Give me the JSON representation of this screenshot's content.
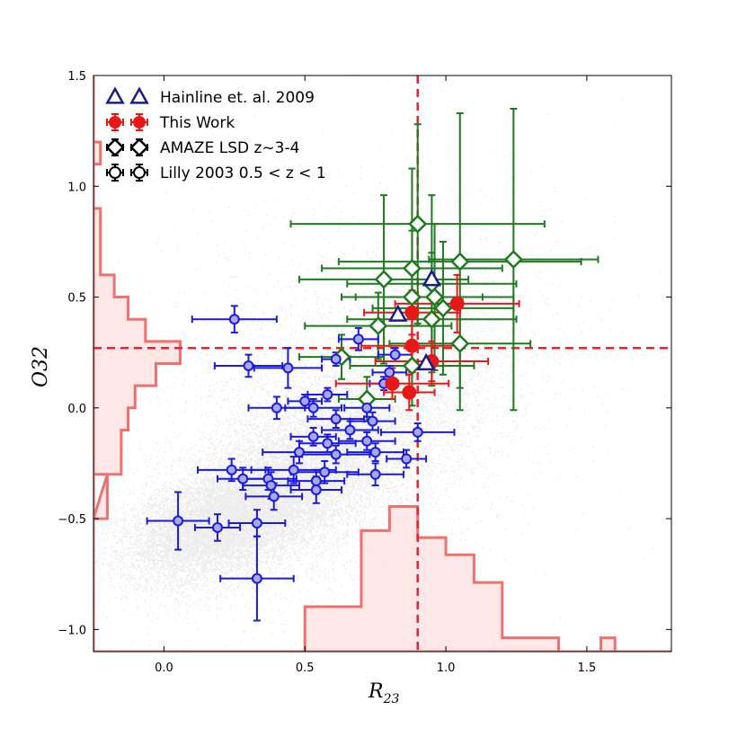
{
  "chart_data": {
    "type": "scatter",
    "xlabel": "R",
    "xlabel_sub": "23",
    "ylabel": "O32",
    "xlim": [
      -0.25,
      1.8
    ],
    "ylim": [
      -1.1,
      1.5
    ],
    "xticks": [
      "0.0",
      "0.5",
      "1.0",
      "1.5"
    ],
    "xtick_values": [
      0.0,
      0.5,
      1.0,
      1.5
    ],
    "yticks": [
      "−1.0",
      "−0.5",
      "0.0",
      "0.5",
      "1.0",
      "1.5"
    ],
    "ytick_values": [
      -1.0,
      -0.5,
      0.0,
      0.5,
      1.0,
      1.5
    ],
    "grid": false,
    "legend_position": "top-left",
    "reference_lines": {
      "x": 0.9,
      "y": 0.27,
      "color": "#e8232a"
    },
    "background_density": {
      "description_free": true,
      "clusters": [
        {
          "cx": 0.2,
          "cy": -0.52,
          "sx": 0.17,
          "sy": 0.13,
          "rho": 0.45,
          "n": 9000
        },
        {
          "cx": 0.5,
          "cy": -0.3,
          "sx": 0.22,
          "sy": 0.22,
          "rho": 0.55,
          "n": 7000
        },
        {
          "cx": 0.7,
          "cy": 0.0,
          "sx": 0.3,
          "sy": 0.35,
          "rho": 0.35,
          "n": 3500
        },
        {
          "cx": 0.6,
          "cy": 0.0,
          "sx": 0.45,
          "sy": 0.55,
          "rho": 0.2,
          "n": 1800
        }
      ],
      "color": "#000000"
    },
    "histogram_x": {
      "color": "#f07070",
      "fill": "#fde3e3",
      "bins": [
        {
          "x0": -0.25,
          "x1": 0.5,
          "value": 0.0
        },
        {
          "x0": 0.5,
          "x1": 0.7,
          "value": 0.13
        },
        {
          "x0": 0.7,
          "x1": 0.8,
          "value": 0.35
        },
        {
          "x0": 0.8,
          "x1": 0.9,
          "value": 0.42
        },
        {
          "x0": 0.9,
          "x1": 1.0,
          "value": 0.33
        },
        {
          "x0": 1.0,
          "x1": 1.1,
          "value": 0.28
        },
        {
          "x0": 1.1,
          "x1": 1.2,
          "value": 0.2
        },
        {
          "x0": 1.2,
          "x1": 1.4,
          "value": 0.04
        },
        {
          "x0": 1.4,
          "x1": 1.55,
          "value": 0.0
        },
        {
          "x0": 1.55,
          "x1": 1.6,
          "value": 0.04
        },
        {
          "x0": 1.6,
          "x1": 1.8,
          "value": 0.0
        }
      ]
    },
    "histogram_y": {
      "color": "#f07070",
      "fill": "#fde3e3",
      "bins": [
        {
          "y0": 1.1,
          "y1": 1.5,
          "value": 0.0
        },
        {
          "y0": 1.2,
          "y1": 1.5,
          "value": 0.0
        },
        {
          "y0": 1.1,
          "y1": 1.2,
          "value": 0.02
        },
        {
          "y0": 0.9,
          "y1": 1.1,
          "value": 0.0
        },
        {
          "y0": 0.6,
          "y1": 0.9,
          "value": 0.02
        },
        {
          "y0": 0.5,
          "y1": 0.6,
          "value": 0.06
        },
        {
          "y0": 0.4,
          "y1": 0.5,
          "value": 0.1
        },
        {
          "y0": 0.3,
          "y1": 0.4,
          "value": 0.15
        },
        {
          "y0": 0.2,
          "y1": 0.3,
          "value": 0.25
        },
        {
          "y0": 0.1,
          "y1": 0.2,
          "value": 0.18
        },
        {
          "y0": 0.0,
          "y1": 0.1,
          "value": 0.12
        },
        {
          "y0": -0.1,
          "y1": 0.0,
          "value": 0.1
        },
        {
          "y0": -0.3,
          "y1": -0.1,
          "value": 0.08
        },
        {
          "y0": -0.5,
          "y1": -0.3,
          "value": 0.0
        },
        {
          "y0": -0.5,
          "y1": -0.3,
          "value": 0.04
        },
        {
          "y0": -1.1,
          "y1": -0.5,
          "value": 0.0
        }
      ]
    },
    "legend": [
      {
        "label": "Hainline et. al. 2009",
        "marker": "triangle",
        "color": "#1b1b8a",
        "fill": "#ffffff"
      },
      {
        "label": "This Work",
        "marker": "circle",
        "color": "#e81818",
        "fill": "#e81818"
      },
      {
        "label": "AMAZE LSD z~3-4",
        "marker": "diamond",
        "color": "#000000",
        "fill": "#ffffff"
      },
      {
        "label": "Lilly 2003 0.5 < z < 1",
        "marker": "circle",
        "color": "#000000",
        "fill": "#ffffff"
      }
    ],
    "series": [
      {
        "name": "Hainline et. al. 2009",
        "marker": "triangle",
        "stroke": "#1b1b8a",
        "fill": "#ffffff",
        "points": [
          {
            "x": 0.83,
            "y": 0.42
          },
          {
            "x": 0.93,
            "y": 0.2
          },
          {
            "x": 0.95,
            "y": 0.58
          }
        ]
      },
      {
        "name": "This Work",
        "marker": "circle",
        "stroke": "#e81818",
        "fill": "#e81818",
        "points": [
          {
            "x": 0.88,
            "y": 0.43,
            "xerr": 0.17,
            "yerr": 0.1
          },
          {
            "x": 1.04,
            "y": 0.47,
            "xerr": 0.22,
            "yerr": 0.13
          },
          {
            "x": 0.88,
            "y": 0.28,
            "xerr": 0.18,
            "yerr": 0.12
          },
          {
            "x": 0.95,
            "y": 0.21,
            "xerr": 0.2,
            "yerr": 0.09
          },
          {
            "x": 0.81,
            "y": 0.11,
            "xerr": 0.2,
            "yerr": 0.07
          },
          {
            "x": 0.87,
            "y": 0.07,
            "xerr": 0.09,
            "yerr": 0.08
          }
        ]
      },
      {
        "name": "AMAZE LSD z~3-4",
        "marker": "diamond",
        "stroke": "#1e7a1e",
        "fill": "#ffffff",
        "points": [
          {
            "x": 0.9,
            "y": 0.83,
            "xerr": 0.45,
            "yerr": 0.45
          },
          {
            "x": 1.24,
            "y": 0.67,
            "xerr": 0.3,
            "yerr": 0.68
          },
          {
            "x": 1.05,
            "y": 0.66,
            "xerr": 0.43,
            "yerr": 0.67
          },
          {
            "x": 0.88,
            "y": 0.63,
            "xerr": 0.32,
            "yerr": 0.45
          },
          {
            "x": 0.78,
            "y": 0.58,
            "xerr": 0.3,
            "yerr": 0.38
          },
          {
            "x": 0.95,
            "y": 0.56,
            "xerr": 0.3,
            "yerr": 0.4
          },
          {
            "x": 0.96,
            "y": 0.5,
            "xerr": 0.28,
            "yerr": 0.33
          },
          {
            "x": 0.88,
            "y": 0.5,
            "xerr": 0.25,
            "yerr": 0.3
          },
          {
            "x": 0.99,
            "y": 0.45,
            "xerr": 0.25,
            "yerr": 0.3
          },
          {
            "x": 0.95,
            "y": 0.4,
            "xerr": 0.3,
            "yerr": 0.3
          },
          {
            "x": 0.76,
            "y": 0.37,
            "xerr": 0.26,
            "yerr": 0.15
          },
          {
            "x": 1.05,
            "y": 0.29,
            "xerr": 0.25,
            "yerr": 0.2
          },
          {
            "x": 0.63,
            "y": 0.23,
            "xerr": 0.15,
            "yerr": 0.1
          },
          {
            "x": 0.88,
            "y": 0.19,
            "xerr": 0.22,
            "yerr": 0.18
          },
          {
            "x": 0.72,
            "y": 0.04,
            "xerr": 0.1,
            "yerr": 0.1
          }
        ]
      },
      {
        "name": "Lilly 2003 0.5 < z < 1",
        "marker": "circle",
        "stroke": "#1a1adf",
        "fill": "#a8a8f0",
        "points": [
          {
            "x": 0.25,
            "y": 0.4,
            "xerr": 0.15,
            "yerr": 0.06
          },
          {
            "x": 0.69,
            "y": 0.31,
            "xerr": 0.07,
            "yerr": 0.05
          },
          {
            "x": 0.3,
            "y": 0.19,
            "xerr": 0.12,
            "yerr": 0.05
          },
          {
            "x": 0.44,
            "y": 0.18,
            "xerr": 0.12,
            "yerr": 0.09
          },
          {
            "x": 0.61,
            "y": 0.22,
            "xerr": 0.05,
            "yerr": 0.03
          },
          {
            "x": 0.82,
            "y": 0.24,
            "xerr": 0.06,
            "yerr": 0.03
          },
          {
            "x": 0.8,
            "y": 0.16,
            "xerr": 0.06,
            "yerr": 0.03
          },
          {
            "x": 0.78,
            "y": 0.11,
            "xerr": 0.05,
            "yerr": 0.03
          },
          {
            "x": 0.58,
            "y": 0.06,
            "xerr": 0.07,
            "yerr": 0.03
          },
          {
            "x": 0.5,
            "y": 0.03,
            "xerr": 0.06,
            "yerr": 0.03
          },
          {
            "x": 0.4,
            "y": 0.0,
            "xerr": 0.1,
            "yerr": 0.05
          },
          {
            "x": 0.53,
            "y": 0.0,
            "xerr": 0.1,
            "yerr": 0.04
          },
          {
            "x": 0.72,
            "y": 0.0,
            "xerr": 0.08,
            "yerr": 0.04
          },
          {
            "x": 0.61,
            "y": -0.05,
            "xerr": 0.1,
            "yerr": 0.04
          },
          {
            "x": 0.74,
            "y": -0.06,
            "xerr": 0.08,
            "yerr": 0.04
          },
          {
            "x": 0.66,
            "y": -0.1,
            "xerr": 0.1,
            "yerr": 0.04
          },
          {
            "x": 0.53,
            "y": -0.13,
            "xerr": 0.08,
            "yerr": 0.04
          },
          {
            "x": 0.58,
            "y": -0.16,
            "xerr": 0.1,
            "yerr": 0.04
          },
          {
            "x": 0.72,
            "y": -0.15,
            "xerr": 0.1,
            "yerr": 0.04
          },
          {
            "x": 0.9,
            "y": -0.11,
            "xerr": 0.13,
            "yerr": 0.04
          },
          {
            "x": 0.48,
            "y": -0.2,
            "xerr": 0.13,
            "yerr": 0.05
          },
          {
            "x": 0.61,
            "y": -0.21,
            "xerr": 0.12,
            "yerr": 0.04
          },
          {
            "x": 0.75,
            "y": -0.2,
            "xerr": 0.1,
            "yerr": 0.04
          },
          {
            "x": 0.86,
            "y": -0.23,
            "xerr": 0.07,
            "yerr": 0.04
          },
          {
            "x": 0.46,
            "y": -0.28,
            "xerr": 0.15,
            "yerr": 0.06
          },
          {
            "x": 0.57,
            "y": -0.29,
            "xerr": 0.12,
            "yerr": 0.05
          },
          {
            "x": 0.24,
            "y": -0.28,
            "xerr": 0.12,
            "yerr": 0.05
          },
          {
            "x": 0.37,
            "y": -0.32,
            "xerr": 0.1,
            "yerr": 0.05
          },
          {
            "x": 0.28,
            "y": -0.32,
            "xerr": 0.09,
            "yerr": 0.05
          },
          {
            "x": 0.54,
            "y": -0.33,
            "xerr": 0.1,
            "yerr": 0.05
          },
          {
            "x": 0.75,
            "y": -0.3,
            "xerr": 0.1,
            "yerr": 0.05
          },
          {
            "x": 0.38,
            "y": -0.35,
            "xerr": 0.1,
            "yerr": 0.06
          },
          {
            "x": 0.54,
            "y": -0.37,
            "xerr": 0.09,
            "yerr": 0.06
          },
          {
            "x": 0.39,
            "y": -0.4,
            "xerr": 0.1,
            "yerr": 0.06
          },
          {
            "x": 0.05,
            "y": -0.51,
            "xerr": 0.11,
            "yerr": 0.13
          },
          {
            "x": 0.19,
            "y": -0.54,
            "xerr": 0.08,
            "yerr": 0.06
          },
          {
            "x": 0.33,
            "y": -0.52,
            "xerr": 0.1,
            "yerr": 0.06
          },
          {
            "x": 0.33,
            "y": -0.77,
            "xerr": 0.13,
            "yerr": 0.19
          }
        ]
      }
    ]
  }
}
